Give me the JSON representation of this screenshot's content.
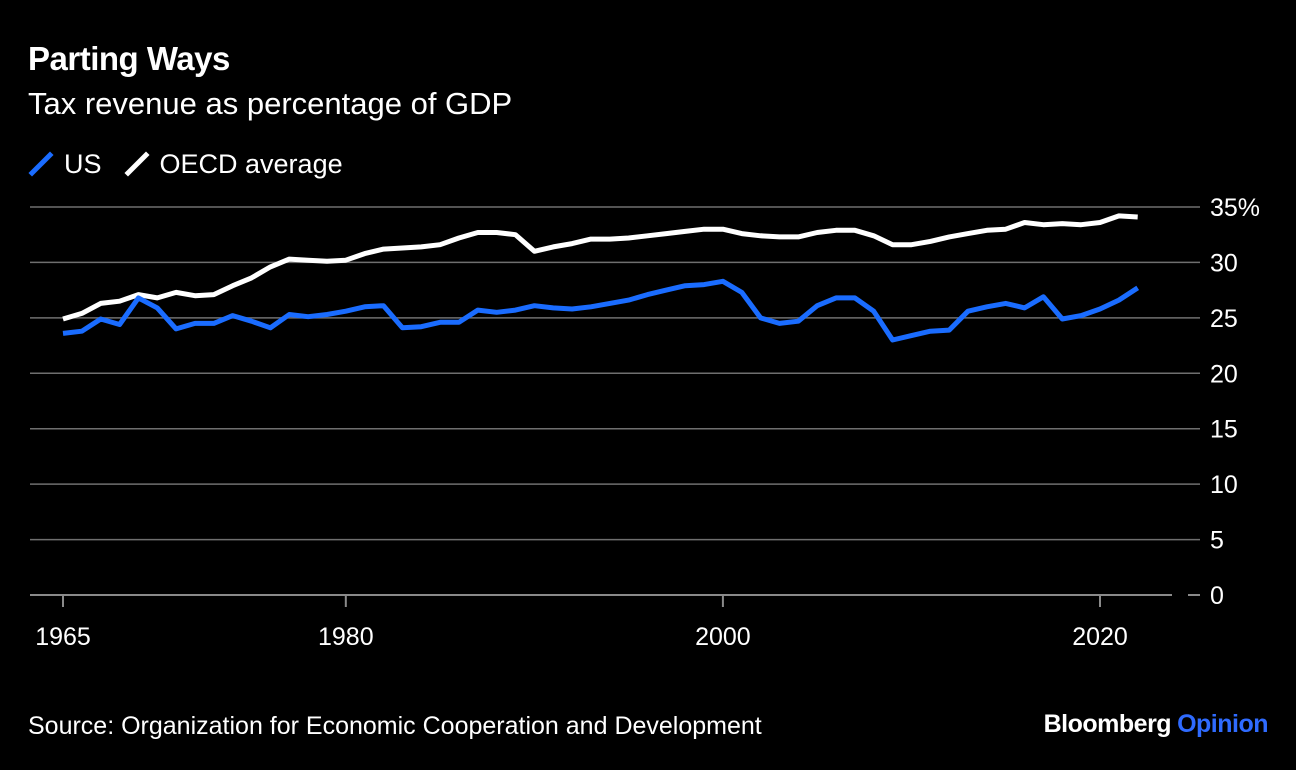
{
  "header": {
    "title": "Parting Ways",
    "subtitle": "Tax revenue as percentage of GDP"
  },
  "footer": {
    "source": "Source: Organization for Economic Cooperation and Development",
    "brand_primary": "Bloomberg",
    "brand_secondary": "Opinion"
  },
  "chart_data": {
    "type": "line",
    "title": "Parting Ways",
    "subtitle": "Tax revenue as percentage of GDP",
    "xlabel": "",
    "ylabel": "",
    "xlim": [
      1963.7,
      2023.2
    ],
    "ylim": [
      0,
      35
    ],
    "grid": true,
    "legend_position": "top-left",
    "x_ticks": [
      1965,
      1980,
      2000,
      2020
    ],
    "x_tick_labels": [
      "1965",
      "1980",
      "2000",
      "2020"
    ],
    "y_ticks": [
      0,
      5,
      10,
      15,
      20,
      25,
      30,
      35
    ],
    "y_tick_labels": [
      "0",
      "5",
      "10",
      "15",
      "20",
      "25",
      "30",
      "35%"
    ],
    "x": [
      1965,
      1966,
      1967,
      1968,
      1969,
      1970,
      1971,
      1972,
      1973,
      1974,
      1975,
      1976,
      1977,
      1978,
      1979,
      1980,
      1981,
      1982,
      1983,
      1984,
      1985,
      1986,
      1987,
      1988,
      1989,
      1990,
      1991,
      1992,
      1993,
      1994,
      1995,
      1996,
      1997,
      1998,
      1999,
      2000,
      2001,
      2002,
      2003,
      2004,
      2005,
      2006,
      2007,
      2008,
      2009,
      2010,
      2011,
      2012,
      2013,
      2014,
      2015,
      2016,
      2017,
      2018,
      2019,
      2020,
      2021,
      2022
    ],
    "series": [
      {
        "name": "US",
        "color": "#1a6cff",
        "values": [
          23.6,
          23.8,
          24.9,
          24.4,
          26.8,
          25.9,
          24.0,
          24.5,
          24.5,
          25.2,
          24.7,
          24.1,
          25.3,
          25.1,
          25.3,
          25.6,
          26.0,
          26.1,
          24.1,
          24.2,
          24.6,
          24.6,
          25.7,
          25.5,
          25.7,
          26.1,
          25.9,
          25.8,
          26.0,
          26.3,
          26.6,
          27.1,
          27.5,
          27.9,
          28.0,
          28.3,
          27.3,
          25.0,
          24.5,
          24.7,
          26.1,
          26.8,
          26.8,
          25.6,
          23.0,
          23.4,
          23.8,
          23.9,
          25.6,
          26.0,
          26.3,
          25.9,
          26.9,
          24.9,
          25.2,
          25.8,
          26.6,
          27.7
        ]
      },
      {
        "name": "OECD average",
        "color": "#ffffff",
        "values": [
          24.9,
          25.4,
          26.3,
          26.5,
          27.1,
          26.8,
          27.3,
          27.0,
          27.1,
          27.9,
          28.6,
          29.6,
          30.3,
          30.2,
          30.1,
          30.2,
          30.8,
          31.2,
          31.3,
          31.4,
          31.6,
          32.2,
          32.7,
          32.7,
          32.5,
          31.0,
          31.4,
          31.7,
          32.1,
          32.1,
          32.2,
          32.4,
          32.6,
          32.8,
          33.0,
          33.0,
          32.6,
          32.4,
          32.3,
          32.3,
          32.7,
          32.9,
          32.9,
          32.4,
          31.6,
          31.6,
          31.9,
          32.3,
          32.6,
          32.9,
          33.0,
          33.6,
          33.4,
          33.5,
          33.4,
          33.6,
          34.2,
          34.1
        ]
      }
    ]
  }
}
